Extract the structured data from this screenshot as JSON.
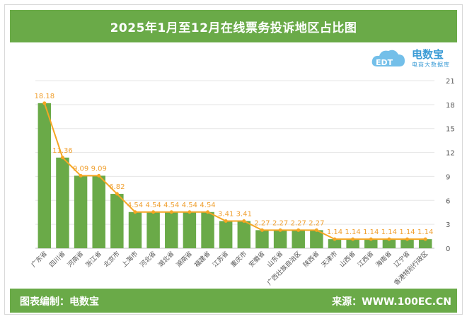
{
  "header": {
    "title": "2025年1月至12月在线票务投诉地区占比图"
  },
  "logo": {
    "name": "电数宝",
    "tagline": "电商大数据库",
    "icon": "cloud-edt-logo",
    "badge": "EDT"
  },
  "footer": {
    "left": "图表编制：电数宝",
    "right": "来源：WWW.100EC.CN"
  },
  "colors": {
    "bar": "#6aaa48",
    "line": "#f5a623",
    "label": "#f0a030",
    "band": "#6aaa48"
  },
  "chart_data": {
    "type": "bar",
    "categories": [
      "广东省",
      "四川省",
      "河南省",
      "浙江省",
      "北京市",
      "上海市",
      "河北省",
      "湖北省",
      "湖南省",
      "福建省",
      "江苏省",
      "重庆市",
      "安徽省",
      "山东省",
      "广西壮族自治区",
      "陕西省",
      "天津市",
      "山西省",
      "江西省",
      "海南省",
      "辽宁省",
      "香港特别行政区"
    ],
    "values": [
      18.18,
      11.36,
      9.09,
      9.09,
      6.82,
      4.54,
      4.54,
      4.54,
      4.54,
      4.54,
      3.41,
      3.41,
      2.27,
      2.27,
      2.27,
      2.27,
      1.14,
      1.14,
      1.14,
      1.14,
      1.14,
      1.14
    ],
    "value_labels": [
      "18.18",
      "11.36",
      "9.09",
      "9.09",
      "6.82",
      "4.54",
      "4.54",
      "4.54",
      "4.54",
      "4.54",
      "3.41",
      "3.41",
      "2.27",
      "2.27",
      "2.27",
      "2.27",
      "1.14",
      "1.14",
      "1.14",
      "1.14",
      "1.14",
      "1.14"
    ],
    "overlay": "line",
    "ylim": [
      0,
      21
    ],
    "yticks": [
      0,
      3,
      6,
      9,
      12,
      15,
      18,
      21
    ],
    "ytick_labels": [
      "0",
      "3",
      "6",
      "9",
      "12",
      "15",
      "18",
      "21"
    ],
    "y_axis_side": "right",
    "grid": true
  }
}
